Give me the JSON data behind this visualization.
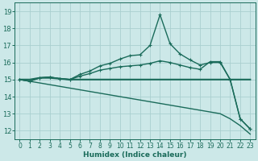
{
  "xlabel": "Humidex (Indice chaleur)",
  "bg_color": "#cce8e8",
  "grid_color": "#aacfcf",
  "line_color": "#1a6b5a",
  "xlim": [
    -0.5,
    23.5
  ],
  "ylim": [
    11.5,
    19.5
  ],
  "xticks": [
    0,
    1,
    2,
    3,
    4,
    5,
    6,
    7,
    8,
    9,
    10,
    11,
    12,
    13,
    14,
    15,
    16,
    17,
    18,
    19,
    20,
    21,
    22,
    23
  ],
  "yticks": [
    12,
    13,
    14,
    15,
    16,
    17,
    18,
    19
  ],
  "lines": [
    {
      "x": [
        0,
        1,
        2,
        3,
        4,
        5,
        6,
        7,
        8,
        9,
        10,
        11,
        12,
        13,
        14,
        15,
        16,
        17,
        18,
        19,
        20,
        21,
        22,
        23
      ],
      "y": [
        15.0,
        15.0,
        15.1,
        15.1,
        15.05,
        15.0,
        15.0,
        15.0,
        15.0,
        15.0,
        15.0,
        15.0,
        15.0,
        15.0,
        15.0,
        15.0,
        15.0,
        15.0,
        15.0,
        15.0,
        15.0,
        15.0,
        15.0,
        15.0
      ],
      "marker": null,
      "lw": 1.5,
      "linestyle": "solid"
    },
    {
      "x": [
        0,
        1,
        2,
        3,
        4,
        5,
        6,
        7,
        8,
        9,
        10,
        11,
        12,
        13,
        14,
        15,
        16,
        17,
        18,
        19,
        20,
        21,
        22,
        23
      ],
      "y": [
        15.0,
        14.9,
        15.1,
        15.15,
        15.05,
        15.0,
        15.3,
        15.5,
        15.8,
        15.95,
        16.2,
        16.4,
        16.45,
        17.0,
        18.8,
        17.1,
        16.5,
        16.15,
        15.85,
        16.0,
        16.0,
        15.0,
        12.7,
        12.1
      ],
      "marker": "+",
      "lw": 1.0,
      "linestyle": "solid"
    },
    {
      "x": [
        0,
        1,
        2,
        3,
        4,
        5,
        6,
        7,
        8,
        9,
        10,
        11,
        12,
        13,
        14,
        15,
        16,
        17,
        18,
        19,
        20,
        21,
        22,
        23
      ],
      "y": [
        15.0,
        14.9,
        15.1,
        15.15,
        15.05,
        15.0,
        15.2,
        15.35,
        15.55,
        15.65,
        15.75,
        15.8,
        15.85,
        15.95,
        16.1,
        16.0,
        15.85,
        15.7,
        15.6,
        16.05,
        16.05,
        15.0,
        12.7,
        12.1
      ],
      "marker": "+",
      "lw": 1.0,
      "linestyle": "solid"
    },
    {
      "x": [
        0,
        1,
        2,
        3,
        4,
        5,
        6,
        7,
        8,
        9,
        10,
        11,
        12,
        13,
        14,
        15,
        16,
        17,
        18,
        19,
        20,
        21,
        22,
        23
      ],
      "y": [
        15.0,
        14.9,
        14.8,
        14.7,
        14.6,
        14.5,
        14.4,
        14.3,
        14.2,
        14.1,
        14.0,
        13.9,
        13.8,
        13.7,
        13.6,
        13.5,
        13.4,
        13.3,
        13.2,
        13.1,
        13.0,
        12.7,
        12.3,
        11.8
      ],
      "marker": null,
      "lw": 1.0,
      "linestyle": "solid"
    }
  ]
}
